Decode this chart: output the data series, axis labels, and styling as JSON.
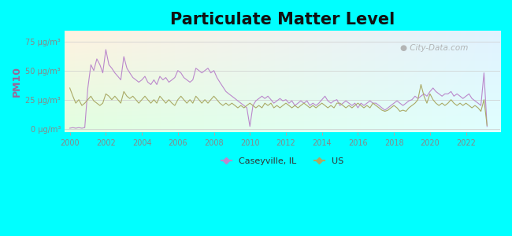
{
  "title": "Particulate Matter Level",
  "ylabel": "PM10",
  "background_color": "#00FFFF",
  "title_fontsize": 15,
  "ytick_labels": [
    "0 μg/m³",
    "25 μg/m³",
    "50 μg/m³",
    "75 μg/m³"
  ],
  "ytick_values": [
    0,
    25,
    50,
    75
  ],
  "ylim": [
    -3,
    84
  ],
  "xlim": [
    1999.7,
    2023.9
  ],
  "caseyville_color": "#bb88cc",
  "us_color": "#aaaa66",
  "watermark": "City-Data.com",
  "ylabel_color": "#996699",
  "tick_label_color": "#888888",
  "grid_color": "#cccccc",
  "caseyville_data": [
    [
      2000.0,
      0.5
    ],
    [
      2000.17,
      1.0
    ],
    [
      2000.33,
      0.5
    ],
    [
      2000.5,
      1.0
    ],
    [
      2000.67,
      0.5
    ],
    [
      2000.83,
      1.0
    ],
    [
      2001.0,
      35
    ],
    [
      2001.17,
      55
    ],
    [
      2001.33,
      50
    ],
    [
      2001.5,
      60
    ],
    [
      2001.67,
      55
    ],
    [
      2001.83,
      48
    ],
    [
      2002.0,
      68
    ],
    [
      2002.17,
      55
    ],
    [
      2002.33,
      52
    ],
    [
      2002.5,
      48
    ],
    [
      2002.67,
      45
    ],
    [
      2002.83,
      42
    ],
    [
      2003.0,
      62
    ],
    [
      2003.17,
      52
    ],
    [
      2003.33,
      48
    ],
    [
      2003.5,
      44
    ],
    [
      2003.67,
      42
    ],
    [
      2003.83,
      40
    ],
    [
      2004.0,
      42
    ],
    [
      2004.17,
      45
    ],
    [
      2004.33,
      40
    ],
    [
      2004.5,
      38
    ],
    [
      2004.67,
      42
    ],
    [
      2004.83,
      38
    ],
    [
      2005.0,
      45
    ],
    [
      2005.17,
      42
    ],
    [
      2005.33,
      44
    ],
    [
      2005.5,
      40
    ],
    [
      2005.67,
      42
    ],
    [
      2005.83,
      44
    ],
    [
      2006.0,
      50
    ],
    [
      2006.17,
      48
    ],
    [
      2006.33,
      44
    ],
    [
      2006.5,
      42
    ],
    [
      2006.67,
      40
    ],
    [
      2006.83,
      42
    ],
    [
      2007.0,
      52
    ],
    [
      2007.17,
      50
    ],
    [
      2007.33,
      48
    ],
    [
      2007.5,
      50
    ],
    [
      2007.67,
      52
    ],
    [
      2007.83,
      48
    ],
    [
      2008.0,
      50
    ],
    [
      2008.17,
      44
    ],
    [
      2008.33,
      40
    ],
    [
      2008.5,
      36
    ],
    [
      2008.67,
      32
    ],
    [
      2008.83,
      30
    ],
    [
      2009.0,
      28
    ],
    [
      2009.17,
      26
    ],
    [
      2009.33,
      24
    ],
    [
      2009.5,
      22
    ],
    [
      2009.67,
      20
    ],
    [
      2009.83,
      18
    ],
    [
      2010.0,
      2
    ],
    [
      2010.17,
      20
    ],
    [
      2010.33,
      24
    ],
    [
      2010.5,
      26
    ],
    [
      2010.67,
      28
    ],
    [
      2010.83,
      26
    ],
    [
      2011.0,
      28
    ],
    [
      2011.17,
      25
    ],
    [
      2011.33,
      22
    ],
    [
      2011.5,
      24
    ],
    [
      2011.67,
      26
    ],
    [
      2011.83,
      24
    ],
    [
      2012.0,
      25
    ],
    [
      2012.17,
      22
    ],
    [
      2012.33,
      24
    ],
    [
      2012.5,
      20
    ],
    [
      2012.67,
      22
    ],
    [
      2012.83,
      24
    ],
    [
      2013.0,
      22
    ],
    [
      2013.17,
      24
    ],
    [
      2013.33,
      20
    ],
    [
      2013.5,
      22
    ],
    [
      2013.67,
      20
    ],
    [
      2013.83,
      22
    ],
    [
      2014.0,
      25
    ],
    [
      2014.17,
      28
    ],
    [
      2014.33,
      24
    ],
    [
      2014.5,
      22
    ],
    [
      2014.67,
      24
    ],
    [
      2014.83,
      25
    ],
    [
      2015.0,
      20
    ],
    [
      2015.17,
      22
    ],
    [
      2015.33,
      24
    ],
    [
      2015.5,
      22
    ],
    [
      2015.67,
      20
    ],
    [
      2015.83,
      22
    ],
    [
      2016.0,
      18
    ],
    [
      2016.17,
      22
    ],
    [
      2016.33,
      20
    ],
    [
      2016.5,
      22
    ],
    [
      2016.67,
      24
    ],
    [
      2016.83,
      22
    ],
    [
      2017.0,
      22
    ],
    [
      2017.17,
      20
    ],
    [
      2017.33,
      18
    ],
    [
      2017.5,
      16
    ],
    [
      2017.67,
      18
    ],
    [
      2017.83,
      20
    ],
    [
      2018.0,
      22
    ],
    [
      2018.17,
      24
    ],
    [
      2018.33,
      22
    ],
    [
      2018.5,
      20
    ],
    [
      2018.67,
      22
    ],
    [
      2018.83,
      24
    ],
    [
      2019.0,
      25
    ],
    [
      2019.17,
      28
    ],
    [
      2019.33,
      26
    ],
    [
      2019.5,
      28
    ],
    [
      2019.67,
      30
    ],
    [
      2019.83,
      28
    ],
    [
      2020.0,
      32
    ],
    [
      2020.17,
      35
    ],
    [
      2020.33,
      32
    ],
    [
      2020.5,
      30
    ],
    [
      2020.67,
      28
    ],
    [
      2020.83,
      30
    ],
    [
      2021.0,
      30
    ],
    [
      2021.17,
      32
    ],
    [
      2021.33,
      28
    ],
    [
      2021.5,
      30
    ],
    [
      2021.67,
      28
    ],
    [
      2021.83,
      26
    ],
    [
      2022.0,
      28
    ],
    [
      2022.17,
      30
    ],
    [
      2022.33,
      26
    ],
    [
      2022.5,
      24
    ],
    [
      2022.67,
      22
    ],
    [
      2022.83,
      20
    ],
    [
      2023.0,
      48
    ],
    [
      2023.17,
      2
    ]
  ],
  "us_data": [
    [
      2000.0,
      35
    ],
    [
      2000.17,
      28
    ],
    [
      2000.33,
      22
    ],
    [
      2000.5,
      25
    ],
    [
      2000.67,
      20
    ],
    [
      2000.83,
      22
    ],
    [
      2001.0,
      25
    ],
    [
      2001.17,
      28
    ],
    [
      2001.33,
      24
    ],
    [
      2001.5,
      22
    ],
    [
      2001.67,
      20
    ],
    [
      2001.83,
      22
    ],
    [
      2002.0,
      30
    ],
    [
      2002.17,
      28
    ],
    [
      2002.33,
      25
    ],
    [
      2002.5,
      28
    ],
    [
      2002.67,
      25
    ],
    [
      2002.83,
      22
    ],
    [
      2003.0,
      32
    ],
    [
      2003.17,
      28
    ],
    [
      2003.33,
      26
    ],
    [
      2003.5,
      28
    ],
    [
      2003.67,
      25
    ],
    [
      2003.83,
      22
    ],
    [
      2004.0,
      25
    ],
    [
      2004.17,
      28
    ],
    [
      2004.33,
      25
    ],
    [
      2004.5,
      22
    ],
    [
      2004.67,
      25
    ],
    [
      2004.83,
      22
    ],
    [
      2005.0,
      28
    ],
    [
      2005.17,
      25
    ],
    [
      2005.33,
      22
    ],
    [
      2005.5,
      25
    ],
    [
      2005.67,
      22
    ],
    [
      2005.83,
      20
    ],
    [
      2006.0,
      25
    ],
    [
      2006.17,
      28
    ],
    [
      2006.33,
      25
    ],
    [
      2006.5,
      22
    ],
    [
      2006.67,
      25
    ],
    [
      2006.83,
      22
    ],
    [
      2007.0,
      28
    ],
    [
      2007.17,
      25
    ],
    [
      2007.33,
      22
    ],
    [
      2007.5,
      25
    ],
    [
      2007.67,
      22
    ],
    [
      2007.83,
      25
    ],
    [
      2008.0,
      28
    ],
    [
      2008.17,
      25
    ],
    [
      2008.33,
      22
    ],
    [
      2008.5,
      20
    ],
    [
      2008.67,
      22
    ],
    [
      2008.83,
      20
    ],
    [
      2009.0,
      22
    ],
    [
      2009.17,
      20
    ],
    [
      2009.33,
      18
    ],
    [
      2009.5,
      20
    ],
    [
      2009.67,
      18
    ],
    [
      2009.83,
      20
    ],
    [
      2010.0,
      22
    ],
    [
      2010.17,
      20
    ],
    [
      2010.33,
      18
    ],
    [
      2010.5,
      20
    ],
    [
      2010.67,
      18
    ],
    [
      2010.83,
      22
    ],
    [
      2011.0,
      20
    ],
    [
      2011.17,
      22
    ],
    [
      2011.33,
      18
    ],
    [
      2011.5,
      20
    ],
    [
      2011.67,
      18
    ],
    [
      2011.83,
      20
    ],
    [
      2012.0,
      22
    ],
    [
      2012.17,
      20
    ],
    [
      2012.33,
      18
    ],
    [
      2012.5,
      20
    ],
    [
      2012.67,
      18
    ],
    [
      2012.83,
      20
    ],
    [
      2013.0,
      22
    ],
    [
      2013.17,
      20
    ],
    [
      2013.33,
      18
    ],
    [
      2013.5,
      20
    ],
    [
      2013.67,
      18
    ],
    [
      2013.83,
      20
    ],
    [
      2014.0,
      22
    ],
    [
      2014.17,
      20
    ],
    [
      2014.33,
      18
    ],
    [
      2014.5,
      20
    ],
    [
      2014.67,
      18
    ],
    [
      2014.83,
      22
    ],
    [
      2015.0,
      22
    ],
    [
      2015.17,
      20
    ],
    [
      2015.33,
      18
    ],
    [
      2015.5,
      20
    ],
    [
      2015.67,
      18
    ],
    [
      2015.83,
      20
    ],
    [
      2016.0,
      22
    ],
    [
      2016.17,
      20
    ],
    [
      2016.33,
      18
    ],
    [
      2016.5,
      20
    ],
    [
      2016.67,
      18
    ],
    [
      2016.83,
      22
    ],
    [
      2017.0,
      20
    ],
    [
      2017.17,
      18
    ],
    [
      2017.33,
      16
    ],
    [
      2017.5,
      15
    ],
    [
      2017.67,
      16
    ],
    [
      2017.83,
      18
    ],
    [
      2018.0,
      20
    ],
    [
      2018.17,
      18
    ],
    [
      2018.33,
      15
    ],
    [
      2018.5,
      16
    ],
    [
      2018.67,
      15
    ],
    [
      2018.83,
      18
    ],
    [
      2019.0,
      20
    ],
    [
      2019.17,
      22
    ],
    [
      2019.33,
      25
    ],
    [
      2019.5,
      38
    ],
    [
      2019.67,
      28
    ],
    [
      2019.83,
      22
    ],
    [
      2020.0,
      30
    ],
    [
      2020.17,
      25
    ],
    [
      2020.33,
      22
    ],
    [
      2020.5,
      20
    ],
    [
      2020.67,
      22
    ],
    [
      2020.83,
      20
    ],
    [
      2021.0,
      22
    ],
    [
      2021.17,
      25
    ],
    [
      2021.33,
      22
    ],
    [
      2021.5,
      20
    ],
    [
      2021.67,
      22
    ],
    [
      2021.83,
      20
    ],
    [
      2022.0,
      22
    ],
    [
      2022.17,
      20
    ],
    [
      2022.33,
      18
    ],
    [
      2022.5,
      20
    ],
    [
      2022.67,
      18
    ],
    [
      2022.83,
      15
    ],
    [
      2023.0,
      25
    ],
    [
      2023.17,
      3
    ]
  ]
}
